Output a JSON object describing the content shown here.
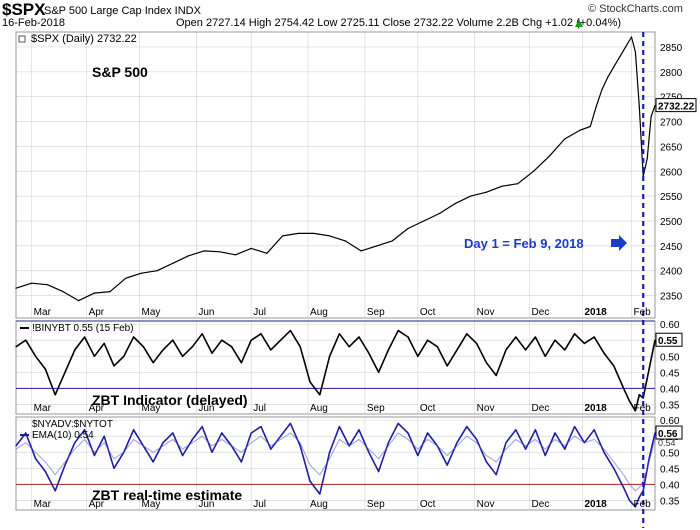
{
  "header": {
    "symbol": "$SPX",
    "name": "S&P 500 Large Cap Index INDX",
    "date": "16-Feb-2018",
    "quote": "Open 2727.14  High 2754.42  Low 2725.11  Close 2732.22  Volume 2.2B  Chg +1.02 (+0.04%)",
    "trend_icon": "up-arrow",
    "credit": "© StockCharts.com"
  },
  "colors": {
    "price_line": "#000000",
    "breadth_line": "#1f1fa0",
    "dashed_marker": "#1c1ca8",
    "annotation_blue": "#1a3cc8",
    "zbt_line_blue": "#2020a0",
    "zbt_line_red": "#b22222",
    "grid": "#d8d8d8"
  },
  "chart_data": [
    {
      "type": "line",
      "panel": "price",
      "legend": "$SPX (Daily) 2732.22",
      "title": "S&P 500",
      "annotation": "Day 1 = Feb 9, 2018",
      "annotation_icon": "right-arrow",
      "last_value_label": "2732.22",
      "ylim": [
        2305,
        2880
      ],
      "yticks": [
        "2850",
        "2800",
        "2750",
        "2700",
        "2650",
        "2600",
        "2550",
        "2500",
        "2450",
        "2400",
        "2350"
      ],
      "x": [
        0,
        8,
        16,
        24,
        32,
        40,
        48,
        56,
        64,
        72,
        80,
        88,
        96,
        104,
        112,
        120,
        128,
        136,
        144,
        152,
        160,
        168,
        176,
        184,
        192,
        200,
        208,
        216,
        224,
        232,
        240,
        248,
        256,
        264,
        272,
        280,
        288,
        293,
        296,
        299,
        302,
        305,
        308,
        311,
        314,
        316,
        318,
        320,
        322,
        324,
        326
      ],
      "values": [
        2365,
        2375,
        2372,
        2358,
        2340,
        2355,
        2358,
        2385,
        2395,
        2400,
        2415,
        2430,
        2440,
        2438,
        2432,
        2445,
        2435,
        2470,
        2475,
        2475,
        2470,
        2460,
        2440,
        2450,
        2460,
        2485,
        2500,
        2515,
        2535,
        2550,
        2558,
        2570,
        2575,
        2600,
        2630,
        2665,
        2683,
        2690,
        2730,
        2765,
        2790,
        2810,
        2830,
        2850,
        2870,
        2840,
        2730,
        2590,
        2625,
        2710,
        2732
      ],
      "vertical_marker_x": 320
    },
    {
      "type": "line",
      "panel": "zbt_delayed",
      "legend": "!BINYBT 0.55 (15 Feb)",
      "label": "ZBT Indicator (delayed)",
      "last_value_label": "0.55",
      "ylim": [
        0.32,
        0.61
      ],
      "yticks": [
        "0.60",
        "0.55",
        "0.50",
        "0.45",
        "0.40",
        "0.35"
      ],
      "reference_lines": [
        0.4,
        0.615
      ],
      "x": [
        0,
        5,
        10,
        15,
        20,
        25,
        30,
        35,
        40,
        45,
        50,
        55,
        60,
        65,
        70,
        75,
        80,
        85,
        90,
        95,
        100,
        105,
        110,
        115,
        120,
        125,
        130,
        135,
        140,
        145,
        150,
        155,
        160,
        165,
        170,
        175,
        180,
        185,
        190,
        195,
        200,
        205,
        210,
        215,
        220,
        225,
        230,
        235,
        240,
        245,
        250,
        255,
        260,
        265,
        270,
        275,
        280,
        285,
        290,
        295,
        300,
        305,
        310,
        313,
        316,
        318,
        320,
        323,
        326
      ],
      "values": [
        0.53,
        0.55,
        0.5,
        0.46,
        0.38,
        0.45,
        0.52,
        0.56,
        0.5,
        0.54,
        0.47,
        0.5,
        0.56,
        0.53,
        0.48,
        0.52,
        0.55,
        0.5,
        0.53,
        0.57,
        0.51,
        0.55,
        0.53,
        0.48,
        0.55,
        0.57,
        0.52,
        0.55,
        0.58,
        0.53,
        0.42,
        0.38,
        0.5,
        0.57,
        0.53,
        0.56,
        0.51,
        0.45,
        0.52,
        0.58,
        0.56,
        0.5,
        0.55,
        0.53,
        0.47,
        0.52,
        0.57,
        0.54,
        0.48,
        0.44,
        0.52,
        0.56,
        0.52,
        0.56,
        0.5,
        0.55,
        0.52,
        0.57,
        0.54,
        0.56,
        0.51,
        0.47,
        0.4,
        0.36,
        0.33,
        0.38,
        0.37,
        0.46,
        0.55
      ]
    },
    {
      "type": "line",
      "panel": "zbt_realtime",
      "legend": "$NYADV:$NYTOT",
      "legend_ema": "EMA(10) 0.54",
      "label": "ZBT real-time estimate",
      "last_value_label": "0.56",
      "last_value_sub": "0.54",
      "ylim": [
        0.32,
        0.61
      ],
      "yticks": [
        "0.60",
        "0.55",
        "0.50",
        "0.45",
        "0.40",
        "0.35"
      ],
      "reference_lines": [
        0.4
      ],
      "x": [
        0,
        5,
        10,
        15,
        20,
        25,
        30,
        35,
        40,
        45,
        50,
        55,
        60,
        65,
        70,
        75,
        80,
        85,
        90,
        95,
        100,
        105,
        110,
        115,
        120,
        125,
        130,
        135,
        140,
        145,
        150,
        155,
        160,
        165,
        170,
        175,
        180,
        185,
        190,
        195,
        200,
        205,
        210,
        215,
        220,
        225,
        230,
        235,
        240,
        245,
        250,
        255,
        260,
        265,
        270,
        275,
        280,
        285,
        290,
        295,
        300,
        305,
        310,
        313,
        316,
        318,
        320,
        323,
        326
      ],
      "values": [
        0.52,
        0.56,
        0.48,
        0.44,
        0.38,
        0.46,
        0.53,
        0.57,
        0.49,
        0.55,
        0.45,
        0.5,
        0.57,
        0.52,
        0.47,
        0.53,
        0.56,
        0.49,
        0.54,
        0.58,
        0.5,
        0.56,
        0.52,
        0.47,
        0.56,
        0.58,
        0.51,
        0.55,
        0.59,
        0.52,
        0.41,
        0.37,
        0.5,
        0.58,
        0.52,
        0.57,
        0.5,
        0.44,
        0.53,
        0.59,
        0.56,
        0.49,
        0.56,
        0.52,
        0.46,
        0.53,
        0.58,
        0.54,
        0.47,
        0.43,
        0.53,
        0.57,
        0.51,
        0.57,
        0.49,
        0.56,
        0.51,
        0.58,
        0.53,
        0.57,
        0.5,
        0.45,
        0.39,
        0.35,
        0.33,
        0.36,
        0.38,
        0.48,
        0.56
      ],
      "ema": [
        0.51,
        0.53,
        0.5,
        0.47,
        0.43,
        0.47,
        0.51,
        0.54,
        0.5,
        0.53,
        0.48,
        0.5,
        0.54,
        0.52,
        0.5,
        0.52,
        0.54,
        0.51,
        0.53,
        0.55,
        0.52,
        0.54,
        0.52,
        0.5,
        0.53,
        0.55,
        0.52,
        0.54,
        0.56,
        0.53,
        0.46,
        0.43,
        0.48,
        0.54,
        0.52,
        0.54,
        0.51,
        0.48,
        0.52,
        0.56,
        0.54,
        0.51,
        0.54,
        0.52,
        0.49,
        0.52,
        0.55,
        0.53,
        0.49,
        0.47,
        0.51,
        0.54,
        0.52,
        0.54,
        0.51,
        0.54,
        0.52,
        0.55,
        0.53,
        0.54,
        0.51,
        0.47,
        0.43,
        0.4,
        0.38,
        0.39,
        0.41,
        0.47,
        0.54
      ]
    }
  ],
  "x_axis": {
    "range": [
      0,
      326
    ],
    "ticks": [
      {
        "x": 8,
        "label": "Mar"
      },
      {
        "x": 36,
        "label": "Apr"
      },
      {
        "x": 63,
        "label": "May"
      },
      {
        "x": 92,
        "label": "Jun"
      },
      {
        "x": 120,
        "label": "Jul"
      },
      {
        "x": 149,
        "label": "Aug"
      },
      {
        "x": 178,
        "label": "Sep"
      },
      {
        "x": 205,
        "label": "Oct"
      },
      {
        "x": 234,
        "label": "Nov"
      },
      {
        "x": 262,
        "label": "Dec"
      },
      {
        "x": 289,
        "label": "2018"
      },
      {
        "x": 314,
        "label": "Feb"
      }
    ]
  }
}
